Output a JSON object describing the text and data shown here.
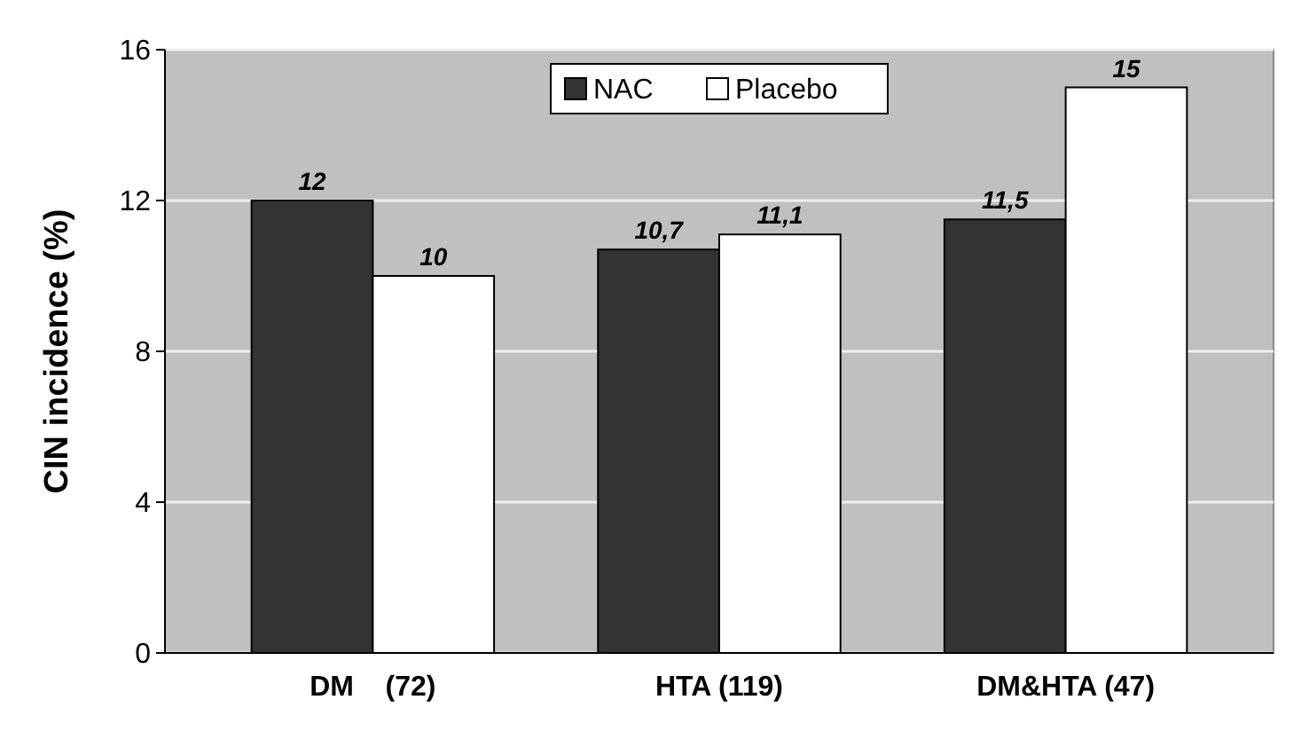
{
  "chart_data": {
    "type": "bar",
    "ylabel": "CIN incidence (%)",
    "categories": [
      "DM    (72)",
      "HTA (119)",
      "DM&HTA (47)"
    ],
    "series": [
      {
        "name": "NAC",
        "color": "#333333",
        "values": [
          12,
          10.7,
          11.5
        ],
        "value_labels": [
          "12",
          "10,7",
          "11,5"
        ]
      },
      {
        "name": "Placebo",
        "color": "#ffffff",
        "values": [
          10,
          11.1,
          15
        ],
        "value_labels": [
          "10",
          "11,1",
          "15"
        ]
      }
    ],
    "ylim": [
      0,
      16
    ],
    "yticks": [
      0,
      4,
      8,
      12,
      16
    ],
    "grid": "y",
    "legend": "top"
  }
}
